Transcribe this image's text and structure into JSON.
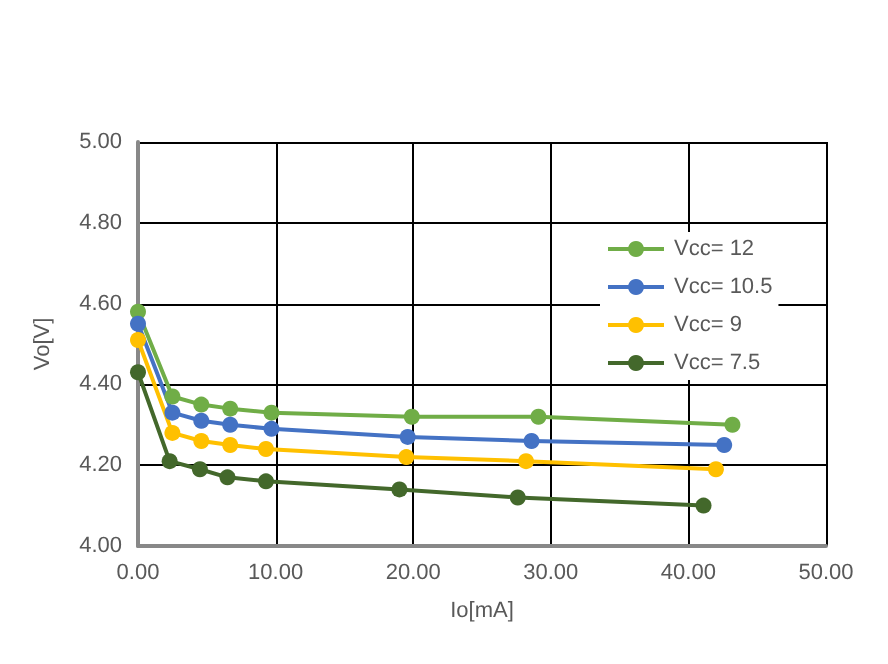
{
  "chart_data": {
    "type": "line",
    "xlabel": "Io[mA]",
    "ylabel": "Vo[V]",
    "xlim": [
      0,
      50
    ],
    "ylim": [
      4,
      5
    ],
    "xticks": [
      {
        "value": 0,
        "label": "0.00"
      },
      {
        "value": 10,
        "label": "10.00"
      },
      {
        "value": 20,
        "label": "20.00"
      },
      {
        "value": 30,
        "label": "30.00"
      },
      {
        "value": 40,
        "label": "40.00"
      },
      {
        "value": 50,
        "label": "50.00"
      }
    ],
    "yticks": [
      {
        "value": 4,
        "label": "4.00"
      },
      {
        "value": 4.2,
        "label": "4.20"
      },
      {
        "value": 4.4,
        "label": "4.40"
      },
      {
        "value": 4.6,
        "label": "4.60"
      },
      {
        "value": 4.8,
        "label": "4.80"
      },
      {
        "value": 5,
        "label": "5.00"
      }
    ],
    "grid": true,
    "legend": "right",
    "marker": "circle",
    "line_style": "solid",
    "series": [
      {
        "name": "Vcc= 12",
        "color": "#70ad47",
        "x": [
          0,
          2.5,
          4.6,
          6.7,
          9.7,
          19.9,
          29.1,
          43.2
        ],
        "values": [
          4.58,
          4.37,
          4.35,
          4.34,
          4.33,
          4.32,
          4.32,
          4.3
        ]
      },
      {
        "name": "Vcc= 10.5",
        "color": "#4472c4",
        "x": [
          0,
          2.5,
          4.6,
          6.7,
          9.7,
          19.6,
          28.6,
          42.6
        ],
        "values": [
          4.55,
          4.33,
          4.31,
          4.3,
          4.29,
          4.27,
          4.26,
          4.25
        ]
      },
      {
        "name": "Vcc= 9",
        "color": "#ffc000",
        "x": [
          0,
          2.5,
          4.6,
          6.7,
          9.3,
          19.5,
          28.2,
          42.0
        ],
        "values": [
          4.51,
          4.28,
          4.26,
          4.25,
          4.24,
          4.22,
          4.21,
          4.19
        ]
      },
      {
        "name": "Vcc= 7.5",
        "color": "#43682b",
        "x": [
          0,
          2.3,
          4.5,
          6.5,
          9.3,
          19.0,
          27.6,
          41.1
        ],
        "values": [
          4.43,
          4.21,
          4.19,
          4.17,
          4.16,
          4.14,
          4.12,
          4.1
        ]
      }
    ]
  }
}
